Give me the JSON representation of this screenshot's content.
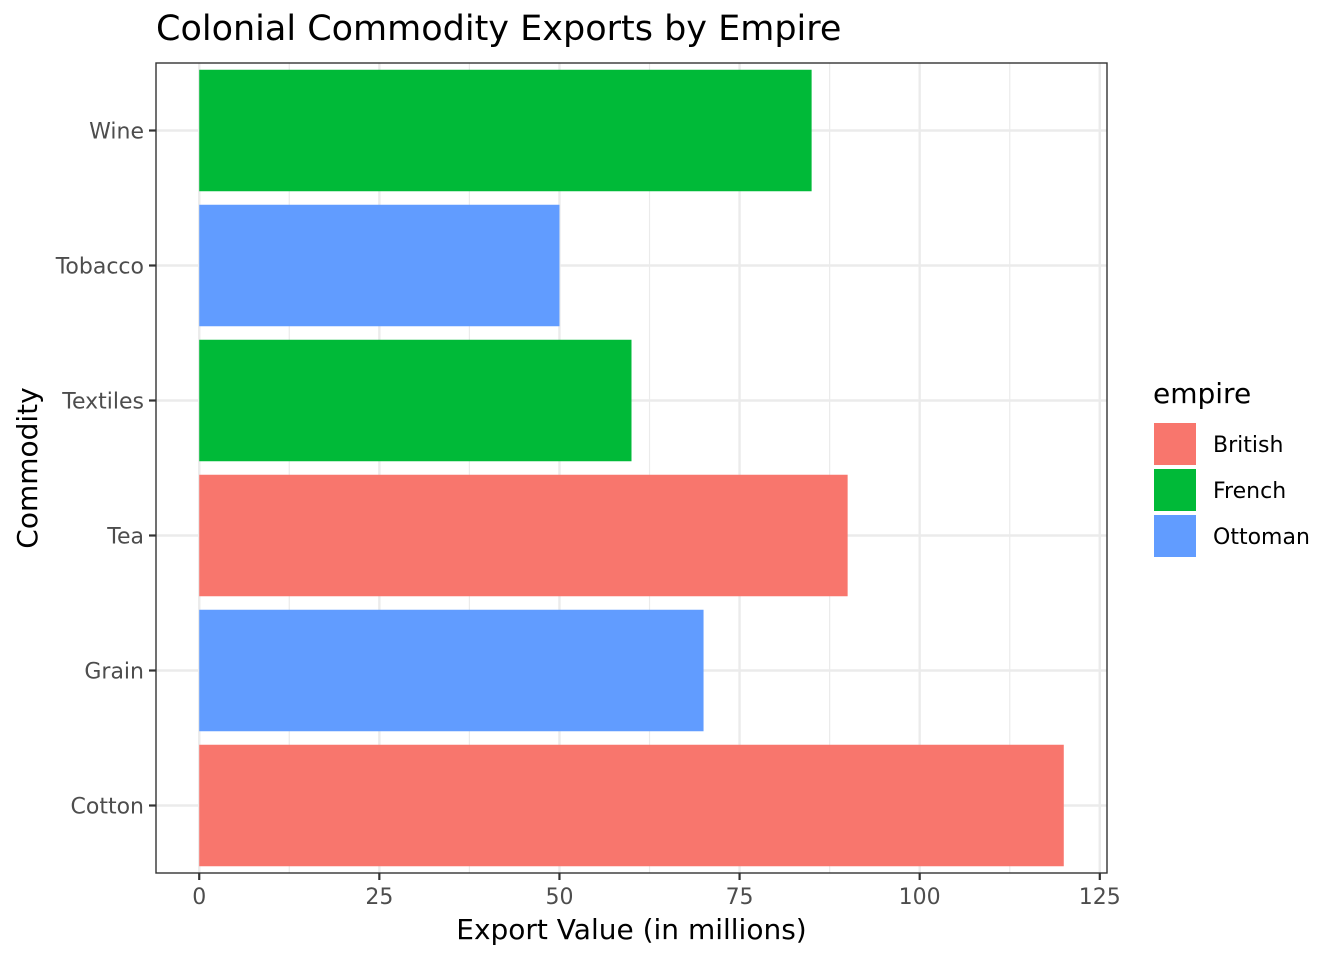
{
  "chart_data": {
    "type": "bar",
    "orientation": "horizontal",
    "title": "Colonial Commodity Exports by Empire",
    "xlabel": "Export Value (in millions)",
    "ylabel": "Commodity",
    "xlim": [
      -6,
      126
    ],
    "xticks": [
      0,
      25,
      50,
      75,
      100,
      125
    ],
    "xtick_labels": [
      "0",
      "25",
      "50",
      "75",
      "100",
      "125"
    ],
    "grid": true,
    "legend_position": "right",
    "legend": {
      "title": "empire",
      "entries": [
        {
          "name": "British",
          "color": "#f8766d"
        },
        {
          "name": "French",
          "color": "#00ba38"
        },
        {
          "name": "Ottoman",
          "color": "#619cff"
        }
      ]
    },
    "categories": [
      "Cotton",
      "Grain",
      "Tea",
      "Textiles",
      "Tobacco",
      "Wine"
    ],
    "bars": [
      {
        "category": "Cotton",
        "empire": "British",
        "value": 120
      },
      {
        "category": "Grain",
        "empire": "Ottoman",
        "value": 70
      },
      {
        "category": "Tea",
        "empire": "British",
        "value": 90
      },
      {
        "category": "Textiles",
        "empire": "French",
        "value": 60
      },
      {
        "category": "Tobacco",
        "empire": "Ottoman",
        "value": 50
      },
      {
        "category": "Wine",
        "empire": "French",
        "value": 85
      }
    ]
  }
}
